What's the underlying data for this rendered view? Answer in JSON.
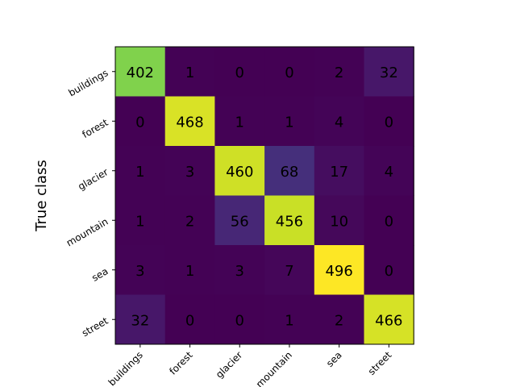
{
  "chart_data": {
    "type": "heatmap",
    "title": "",
    "xlabel": "",
    "ylabel": "True class",
    "x_categories": [
      "buildings",
      "forest",
      "glacier",
      "mountain",
      "sea",
      "street"
    ],
    "y_categories": [
      "buildings",
      "forest",
      "glacier",
      "mountain",
      "sea",
      "street"
    ],
    "values": [
      [
        402,
        1,
        0,
        0,
        2,
        32
      ],
      [
        0,
        468,
        1,
        1,
        4,
        0
      ],
      [
        1,
        3,
        460,
        68,
        17,
        4
      ],
      [
        1,
        2,
        56,
        456,
        10,
        0
      ],
      [
        3,
        1,
        3,
        7,
        496,
        0
      ],
      [
        32,
        0,
        0,
        1,
        2,
        466
      ]
    ],
    "colormap": "viridis",
    "value_range": [
      0,
      496
    ],
    "grid": false,
    "legend": "none"
  }
}
